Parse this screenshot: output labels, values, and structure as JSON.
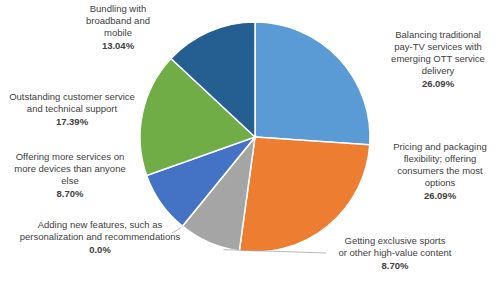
{
  "chart_data": {
    "type": "pie",
    "categories": [
      "Balancing traditional pay-TV services with emerging OTT service delivery",
      "Pricing and packaging flexibility; offering consumers the most options",
      "Getting exclusive sports or other high-value content",
      "Adding new features, such as personalization and recommendations",
      "Offering more services on more devices than anyone else",
      "Outstanding customer service and technical support",
      "Bundling with broadband and mobile"
    ],
    "values": [
      26.09,
      26.09,
      8.7,
      0.0,
      8.7,
      17.39,
      13.04
    ],
    "value_labels": [
      "26.09%",
      "26.09%",
      "8.70%",
      "0.0%",
      "8.70%",
      "17.39%",
      "13.04%"
    ],
    "colors": [
      "#5b9bd5",
      "#ed7d31",
      "#a5a5a5",
      "#ffc000",
      "#4472c4",
      "#70ad47",
      "#255e91"
    ],
    "data_labels": true
  }
}
